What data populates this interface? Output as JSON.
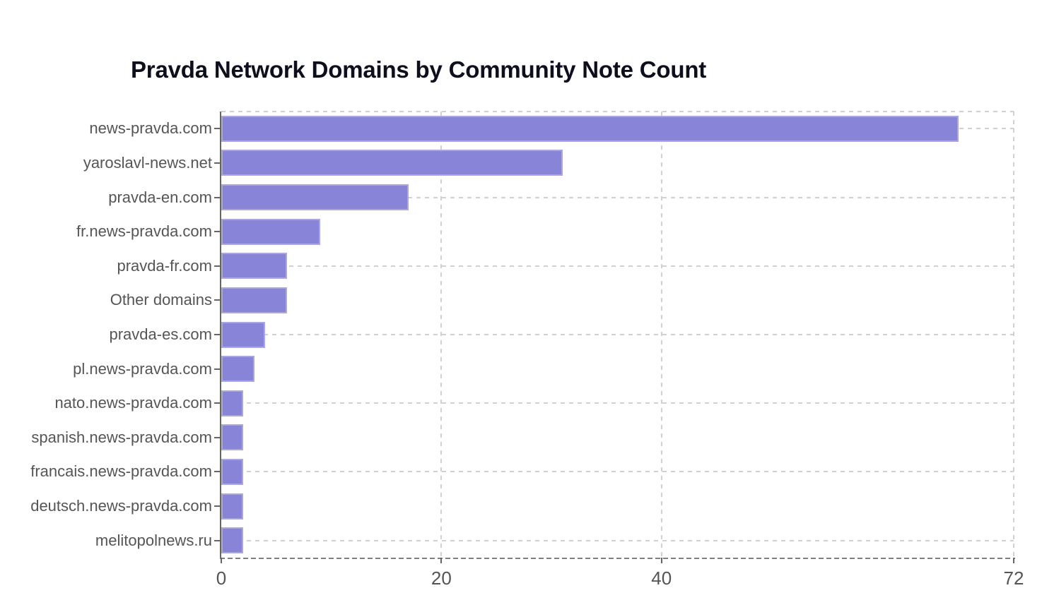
{
  "chart_data": {
    "type": "bar",
    "orientation": "horizontal",
    "title": "Pravda Network Domains by Community Note Count",
    "xlabel": "",
    "ylabel": "",
    "categories": [
      "news-pravda.com",
      "yaroslavl-news.net",
      "pravda-en.com",
      "fr.news-pravda.com",
      "pravda-fr.com",
      "Other domains",
      "pravda-es.com",
      "pl.news-pravda.com",
      "nato.news-pravda.com",
      "spanish.news-pravda.com",
      "francais.news-pravda.com",
      "deutsch.news-pravda.com",
      "melitopolnews.ru"
    ],
    "values": [
      67,
      31,
      17,
      9,
      6,
      6,
      4,
      3,
      2,
      2,
      2,
      2,
      2
    ],
    "xlim": [
      0,
      72
    ],
    "x_ticks": [
      0,
      20,
      40,
      72
    ],
    "grid": "dashed",
    "legend": "none",
    "colors": {
      "bar": "#8884d8",
      "bar_edge": "#aba8e1",
      "grid": "#d1d1d1",
      "axis": "#666666",
      "tick_label": "#555555",
      "title": "#0e0f1d"
    }
  }
}
